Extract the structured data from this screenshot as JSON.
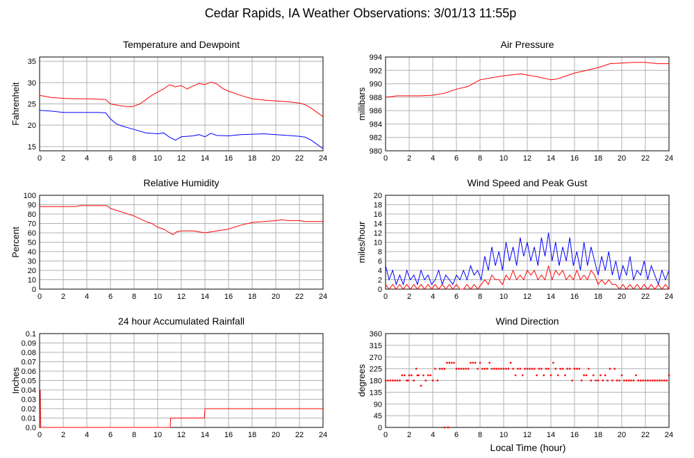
{
  "page": {
    "title": "Cedar Rapids, IA Weather Observations: 3/01/13 11:55p",
    "xlabel": "Local Time (hour)"
  },
  "colors": {
    "red": "#ff0000",
    "blue": "#0000ff",
    "grid": "#b0b0b0"
  },
  "chart_data": [
    {
      "id": "temp",
      "type": "line",
      "title": "Temperature and Dewpoint",
      "ylabel": "Fahrenheit",
      "xlim": [
        0,
        24
      ],
      "ylim": [
        14,
        36
      ],
      "xticks": [
        0,
        2,
        4,
        6,
        8,
        10,
        12,
        14,
        16,
        18,
        20,
        22,
        24
      ],
      "yticks": [
        15,
        20,
        25,
        30,
        35
      ],
      "grid": true,
      "series": [
        {
          "color": "#ff0000",
          "x": [
            0,
            1,
            2,
            3,
            4,
            5,
            5.6,
            6,
            7,
            7.8,
            8.5,
            9.5,
            10.5,
            11,
            11.5,
            12,
            12.5,
            13,
            13.5,
            14,
            14.5,
            15,
            15.5,
            16,
            17,
            18,
            19,
            20,
            21,
            22,
            22.5,
            23,
            23.5,
            24
          ],
          "y": [
            27,
            26.5,
            26.3,
            26.2,
            26.2,
            26.1,
            26,
            25,
            24.5,
            24.3,
            25,
            27,
            28.5,
            29.5,
            29,
            29.3,
            28.5,
            29.2,
            29.8,
            29.5,
            30.1,
            29.7,
            28.6,
            28,
            27,
            26.2,
            25.9,
            25.7,
            25.5,
            25.2,
            24.8,
            24,
            23,
            22
          ]
        },
        {
          "color": "#0000ff",
          "x": [
            0,
            1,
            2,
            3,
            4,
            5,
            5.6,
            6,
            6.5,
            7,
            8,
            9,
            10,
            10.5,
            11,
            11.5,
            12,
            13,
            13.5,
            14,
            14.5,
            15,
            16,
            17,
            18,
            19,
            20,
            21,
            22,
            22.5,
            23,
            23.5,
            24
          ],
          "y": [
            23.5,
            23.3,
            23,
            23,
            23,
            23,
            22.9,
            21.5,
            20.3,
            19.8,
            19,
            18.2,
            18,
            18.2,
            17.2,
            16.5,
            17.3,
            17.5,
            17.8,
            17.3,
            18.1,
            17.6,
            17.5,
            17.8,
            17.9,
            18,
            17.8,
            17.6,
            17.4,
            17.2,
            16.5,
            15.5,
            14.5
          ]
        }
      ]
    },
    {
      "id": "pressure",
      "type": "line",
      "title": "Air Pressure",
      "ylabel": "millibars",
      "xlim": [
        0,
        24
      ],
      "ylim": [
        980,
        994
      ],
      "xticks": [
        0,
        2,
        4,
        6,
        8,
        10,
        12,
        14,
        16,
        18,
        20,
        22,
        24
      ],
      "yticks": [
        980,
        982,
        984,
        986,
        988,
        990,
        992,
        994
      ],
      "grid": true,
      "series": [
        {
          "color": "#ff0000",
          "x": [
            0,
            1,
            2,
            3,
            4,
            5,
            6,
            7,
            8,
            9,
            10,
            11,
            11.5,
            12,
            13,
            14,
            14.5,
            15,
            16,
            17,
            18,
            19,
            20,
            21,
            22,
            23,
            24
          ],
          "y": [
            988,
            988.2,
            988.2,
            988.2,
            988.3,
            988.6,
            989.2,
            989.6,
            990.6,
            990.9,
            991.2,
            991.4,
            991.5,
            991.3,
            991,
            990.6,
            990.7,
            991,
            991.6,
            992,
            992.4,
            993,
            993.1,
            993.2,
            993.2,
            993,
            993
          ]
        }
      ]
    },
    {
      "id": "humidity",
      "type": "line",
      "title": "Relative Humidity",
      "ylabel": "Percent",
      "xlim": [
        0,
        24
      ],
      "ylim": [
        0,
        100
      ],
      "xticks": [
        0,
        2,
        4,
        6,
        8,
        10,
        12,
        14,
        16,
        18,
        20,
        22,
        24
      ],
      "yticks": [
        0,
        10,
        20,
        30,
        40,
        50,
        60,
        70,
        80,
        90,
        100
      ],
      "grid": true,
      "series": [
        {
          "color": "#ff0000",
          "x": [
            0,
            1,
            2,
            3,
            3.5,
            4,
            5,
            5.7,
            6,
            6.5,
            7,
            8,
            9,
            9.5,
            10,
            10.5,
            11,
            11.3,
            11.6,
            12,
            13,
            14,
            15,
            16,
            17,
            18,
            19,
            20,
            20.5,
            21,
            22,
            22.5,
            23,
            24
          ],
          "y": [
            88,
            88,
            88,
            88,
            89,
            89,
            89,
            89,
            86,
            84,
            82,
            78,
            72,
            70,
            66,
            64,
            60,
            58,
            61,
            62,
            62,
            60,
            62,
            64,
            68,
            71,
            72,
            73,
            74,
            73,
            73,
            72,
            72,
            72
          ]
        }
      ]
    },
    {
      "id": "wind",
      "type": "line",
      "title": "Wind Speed and Peak Gust",
      "ylabel": "miles/hour",
      "xlim": [
        0,
        24
      ],
      "ylim": [
        0,
        20
      ],
      "xticks": [
        0,
        2,
        4,
        6,
        8,
        10,
        12,
        14,
        16,
        18,
        20,
        22,
        24
      ],
      "yticks": [
        0,
        2,
        4,
        6,
        8,
        10,
        12,
        14,
        16,
        18,
        20
      ],
      "grid": true,
      "series": [
        {
          "color": "#0000ff",
          "x": [
            0,
            0.3,
            0.6,
            0.9,
            1.2,
            1.5,
            1.8,
            2.1,
            2.4,
            2.7,
            3,
            3.3,
            3.6,
            3.9,
            4.2,
            4.5,
            4.8,
            5.1,
            5.4,
            5.7,
            6,
            6.3,
            6.6,
            6.9,
            7.2,
            7.5,
            7.8,
            8.1,
            8.4,
            8.7,
            9,
            9.3,
            9.6,
            9.9,
            10.2,
            10.5,
            10.8,
            11.1,
            11.4,
            11.7,
            12,
            12.3,
            12.6,
            12.9,
            13.2,
            13.5,
            13.8,
            14.1,
            14.4,
            14.7,
            15,
            15.3,
            15.6,
            15.9,
            16.2,
            16.5,
            16.8,
            17.1,
            17.4,
            17.7,
            18,
            18.3,
            18.6,
            18.9,
            19.2,
            19.5,
            19.8,
            20.1,
            20.4,
            20.7,
            21,
            21.3,
            21.6,
            21.9,
            22.2,
            22.5,
            22.8,
            23.1,
            23.4,
            23.7,
            24
          ],
          "y": [
            5,
            2,
            4,
            1,
            3,
            1,
            4,
            2,
            3,
            1,
            4,
            2,
            3,
            1,
            2,
            4,
            1,
            3,
            2,
            1,
            3,
            2,
            4,
            2,
            5,
            3,
            4,
            2,
            7,
            4,
            9,
            5,
            8,
            4,
            10,
            6,
            9,
            5,
            11,
            7,
            10,
            6,
            9,
            5,
            11,
            7,
            12,
            6,
            10,
            5,
            9,
            6,
            11,
            5,
            8,
            4,
            10,
            5,
            9,
            6,
            3,
            7,
            4,
            8,
            3,
            6,
            2,
            5,
            3,
            7,
            2,
            4,
            3,
            6,
            2,
            5,
            3,
            1,
            4,
            2,
            4
          ]
        },
        {
          "color": "#ff0000",
          "x": [
            0,
            0.3,
            0.6,
            0.9,
            1.2,
            1.5,
            1.8,
            2.1,
            2.4,
            2.7,
            3,
            3.3,
            3.6,
            3.9,
            4.2,
            4.5,
            4.8,
            5.1,
            5.4,
            5.7,
            6,
            6.3,
            6.6,
            6.9,
            7.2,
            7.5,
            7.8,
            8.1,
            8.4,
            8.7,
            9,
            9.3,
            9.6,
            9.9,
            10.2,
            10.5,
            10.8,
            11.1,
            11.4,
            11.7,
            12,
            12.3,
            12.6,
            12.9,
            13.2,
            13.5,
            13.8,
            14.1,
            14.4,
            14.7,
            15,
            15.3,
            15.6,
            15.9,
            16.2,
            16.5,
            16.8,
            17.1,
            17.4,
            17.7,
            18,
            18.3,
            18.6,
            18.9,
            19.2,
            19.5,
            19.8,
            20.1,
            20.4,
            20.7,
            21,
            21.3,
            21.6,
            21.9,
            22.2,
            22.5,
            22.8,
            23.1,
            23.4,
            23.7,
            24
          ],
          "y": [
            1,
            0,
            1,
            0,
            1,
            0,
            1,
            0,
            1,
            0,
            1,
            0,
            1,
            0,
            1,
            0,
            1,
            0,
            1,
            0,
            1,
            0,
            0,
            1,
            0,
            1,
            0,
            1,
            2,
            1,
            3,
            2,
            2,
            1,
            3,
            2,
            4,
            2,
            3,
            2,
            4,
            3,
            4,
            2,
            3,
            2,
            5,
            2,
            4,
            3,
            4,
            2,
            3,
            2,
            4,
            2,
            3,
            2,
            4,
            3,
            1,
            2,
            1,
            2,
            1,
            1,
            0,
            1,
            0,
            1,
            0,
            1,
            0,
            1,
            0,
            1,
            0,
            1,
            0,
            1,
            0
          ]
        }
      ]
    },
    {
      "id": "rain",
      "type": "line",
      "title": "24 hour Accumulated Rainfall",
      "ylabel": "Inches",
      "xlim": [
        0,
        24
      ],
      "ylim": [
        0,
        0.1
      ],
      "xticks": [
        0,
        2,
        4,
        6,
        8,
        10,
        12,
        14,
        16,
        18,
        20,
        22,
        24
      ],
      "yticks": [
        0,
        0.01,
        0.02,
        0.03,
        0.04,
        0.05,
        0.06,
        0.07,
        0.08,
        0.09,
        0.1
      ],
      "ytick_labels": [
        "0.0",
        "0.01",
        "0.02",
        "0.03",
        "0.04",
        "0.05",
        "0.06",
        "0.07",
        "0.08",
        "0.09",
        "0.1"
      ],
      "grid": true,
      "series": [
        {
          "color": "#ff0000",
          "x": [
            0,
            0.05,
            0.1,
            11.05,
            11.1,
            13.95,
            14,
            24
          ],
          "y": [
            0.04,
            0.04,
            0,
            0,
            0.01,
            0.01,
            0.02,
            0.02
          ]
        }
      ]
    },
    {
      "id": "winddir",
      "type": "scatter",
      "title": "Wind Direction",
      "ylabel": "degrees",
      "xlim": [
        0,
        24
      ],
      "ylim": [
        0,
        360
      ],
      "xticks": [
        0,
        2,
        4,
        6,
        8,
        10,
        12,
        14,
        16,
        18,
        20,
        22,
        24
      ],
      "yticks": [
        0,
        45,
        90,
        135,
        180,
        225,
        270,
        315,
        360
      ],
      "grid": true,
      "series": [
        {
          "color": "#ff0000",
          "x": [
            0,
            0.2,
            0.4,
            0.6,
            0.8,
            1,
            1.2,
            1.4,
            1.6,
            1.8,
            2,
            2.2,
            2.4,
            2.6,
            2.8,
            3,
            3.2,
            3.4,
            3.6,
            3.8,
            4,
            4.2,
            4.4,
            4.6,
            4.8,
            5,
            5.2,
            5.4,
            5.6,
            5.8,
            6,
            6.2,
            6.4,
            6.6,
            6.8,
            7,
            7.2,
            7.4,
            7.6,
            7.8,
            8,
            8.2,
            8.4,
            8.6,
            8.8,
            9,
            9.2,
            9.4,
            9.6,
            9.8,
            10,
            10.2,
            10.4,
            10.6,
            10.8,
            11,
            11.2,
            11.4,
            11.6,
            11.8,
            12,
            12.2,
            12.4,
            12.6,
            12.8,
            13,
            13.2,
            13.4,
            13.6,
            13.8,
            14,
            14.2,
            14.4,
            14.6,
            14.8,
            15,
            15.2,
            15.4,
            15.6,
            15.8,
            16,
            16.2,
            16.4,
            16.6,
            16.8,
            17,
            17.2,
            17.4,
            17.6,
            17.8,
            18,
            18.2,
            18.4,
            18.6,
            18.8,
            19,
            19.2,
            19.4,
            19.6,
            19.8,
            20,
            20.2,
            20.4,
            20.6,
            20.8,
            21,
            21.2,
            21.4,
            21.6,
            21.8,
            22,
            22.2,
            22.4,
            22.6,
            22.8,
            23,
            23.2,
            23.4,
            23.6,
            23.8,
            24,
            5,
            5.3,
            1.9,
            2.7
          ],
          "y": [
            180,
            180,
            180,
            180,
            180,
            180,
            180,
            200,
            200,
            180,
            200,
            200,
            180,
            225,
            200,
            160,
            200,
            180,
            200,
            200,
            180,
            225,
            180,
            225,
            225,
            225,
            248,
            248,
            248,
            248,
            225,
            225,
            225,
            225,
            225,
            225,
            248,
            248,
            248,
            225,
            248,
            225,
            225,
            225,
            248,
            225,
            225,
            225,
            225,
            225,
            225,
            225,
            225,
            248,
            225,
            200,
            225,
            225,
            200,
            225,
            225,
            225,
            225,
            225,
            200,
            225,
            225,
            200,
            225,
            225,
            200,
            248,
            225,
            200,
            225,
            225,
            200,
            225,
            225,
            180,
            225,
            225,
            225,
            180,
            200,
            200,
            225,
            180,
            200,
            180,
            180,
            200,
            180,
            200,
            180,
            225,
            180,
            225,
            180,
            180,
            200,
            180,
            180,
            180,
            180,
            180,
            200,
            180,
            180,
            180,
            180,
            180,
            180,
            180,
            180,
            180,
            180,
            180,
            180,
            180,
            200,
            0,
            0,
            180,
            200
          ]
        }
      ]
    }
  ]
}
